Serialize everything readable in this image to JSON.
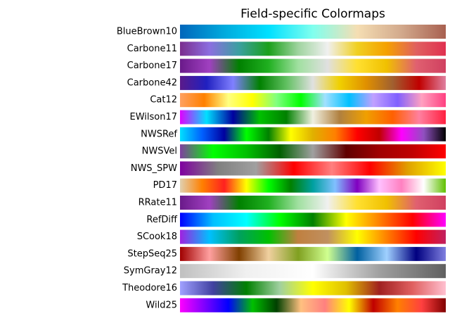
{
  "chart_data": {
    "type": "colormap",
    "title": "Field-specific  Colormaps",
    "categories": [
      "BlueBrown10",
      "Carbone11",
      "Carbone17",
      "Carbone42",
      "Cat12",
      "EWilson17",
      "NWSRef",
      "NWSVel",
      "NWS_SPW",
      "PD17",
      "RRate11",
      "RefDiff",
      "SCook18",
      "StepSeq25",
      "SymGray12",
      "Theodore16",
      "Wild25"
    ],
    "colors": [
      [
        "#0066bb",
        "#00aadd",
        "#00e0ff",
        "#80ffee",
        "#f5deb3",
        "#d2a98c",
        "#a86050"
      ],
      [
        "#7b2d8e",
        "#8c6ee0",
        "#3aa0a0",
        "#1aa01a",
        "#9fd49f",
        "#f0f0f0",
        "#f0d020",
        "#f5a000",
        "#e06060",
        "#e03050"
      ],
      [
        "#6a1a8a",
        "#a040c0",
        "#008000",
        "#20b020",
        "#a0e0a0",
        "#e0e0e0",
        "#ffe030",
        "#f0c000",
        "#e06070",
        "#d04060"
      ],
      [
        "#5a1a8a",
        "#2020c0",
        "#8080ff",
        "#008000",
        "#60c060",
        "#e0e0e0",
        "#f0d000",
        "#e09000",
        "#a06030",
        "#c00000",
        "#e080a0"
      ],
      [
        "#ffa060",
        "#ff8000",
        "#ffff80",
        "#ffff00",
        "#80ff80",
        "#00ff00",
        "#a0e0ff",
        "#00c0ff",
        "#c0a0ff",
        "#8060ff",
        "#ffa0c0",
        "#ff4080"
      ],
      [
        "#e000ff",
        "#00e0ff",
        "#0000a0",
        "#00c000",
        "#008000",
        "#f0f0e0",
        "#b08040",
        "#f0a000",
        "#ff6000",
        "#ff80a0",
        "#ff2040"
      ],
      [
        "#00e0ff",
        "#0060ff",
        "#0000a0",
        "#00ff00",
        "#008000",
        "#ffff00",
        "#e0b000",
        "#ff8000",
        "#ff0000",
        "#c00000",
        "#ff00ff",
        "#9050c0",
        "#000000"
      ],
      [
        "#8040a0",
        "#00ff00",
        "#00c000",
        "#006000",
        "#a0a0a0",
        "#600000",
        "#a00000",
        "#c00000",
        "#ff0000"
      ],
      [
        "#8000a0",
        "#808080",
        "#a0a0a0",
        "#ff0000",
        "#ff8080",
        "#ff0000",
        "#e0a000",
        "#ffff00"
      ],
      [
        "#e0d0b0",
        "#ff8000",
        "#ff2020",
        "#ffff00",
        "#00ff00",
        "#008000",
        "#00a0a0",
        "#80c0ff",
        "#8000c0",
        "#ffc0ff",
        "#ff80c0",
        "#ffffff",
        "#60c000"
      ],
      [
        "#6a1a8a",
        "#a040c0",
        "#008000",
        "#20b020",
        "#a0e0a0",
        "#f0f0f0",
        "#ffe030",
        "#f0c000",
        "#e06070",
        "#d04060"
      ],
      [
        "#0000ff",
        "#00c0ff",
        "#00ffff",
        "#00ff00",
        "#008000",
        "#ffff00",
        "#ff8000",
        "#ff0000",
        "#ff00ff"
      ],
      [
        "#a020e0",
        "#00c0ff",
        "#00a060",
        "#00c000",
        "#c08040",
        "#c09060",
        "#ffff00",
        "#ff8000",
        "#ff0000",
        "#c02060"
      ],
      [
        "#a00000",
        "#ffa0a0",
        "#804000",
        "#f0d0a0",
        "#80a020",
        "#d0ff90",
        "#0060a0",
        "#a0d0ff",
        "#000080",
        "#8080e0"
      ],
      [
        "#c0c0c0",
        "#f0f0f0",
        "#ffffff",
        "#a0a0a0",
        "#606060"
      ],
      [
        "#a0a0ff",
        "#4040a0",
        "#008000",
        "#a0d0a0",
        "#ffff00",
        "#e0c000",
        "#a02020",
        "#e06060",
        "#ffc0d0"
      ],
      [
        "#ff00ff",
        "#8000ff",
        "#0000ff",
        "#00c000",
        "#004000",
        "#ffc080",
        "#ff8080",
        "#ffff00",
        "#c00000",
        "#ff8000",
        "#ff4040",
        "#800000"
      ]
    ]
  }
}
